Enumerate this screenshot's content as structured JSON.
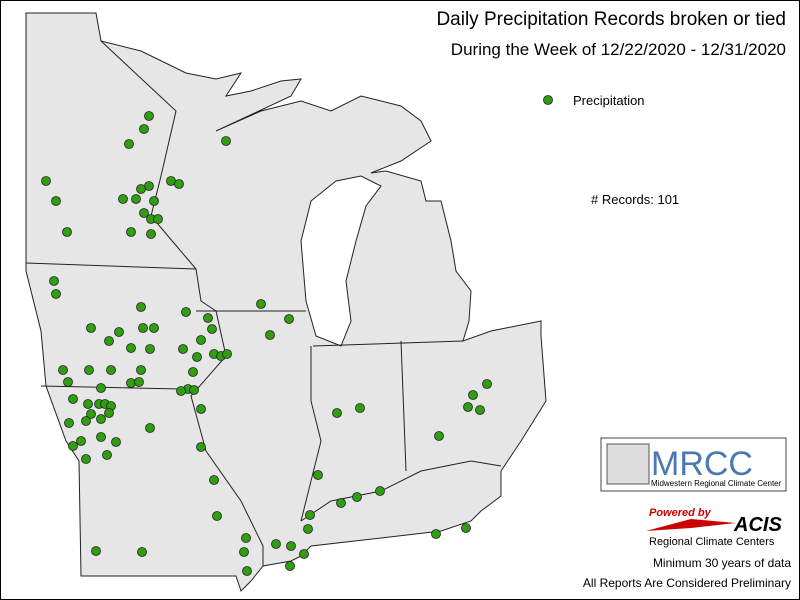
{
  "header": {
    "title": "Daily Precipitation Records broken or tied",
    "subtitle": "During the Week of 12/22/2020 - 12/31/2020"
  },
  "legend": {
    "label": "Precipitation",
    "color": "#2f9e0f"
  },
  "records_text": "# Records: 101",
  "logo": {
    "name": "MRCC",
    "full_name": "Midwestern Regional Climate Center"
  },
  "acis": {
    "powered_by": "Powered by",
    "name": "ACIS",
    "full_name": "Regional Climate Centers"
  },
  "footer": {
    "line1": "Minimum 30 years of data",
    "line2": "All Reports Are Considered Preliminary"
  }
}
